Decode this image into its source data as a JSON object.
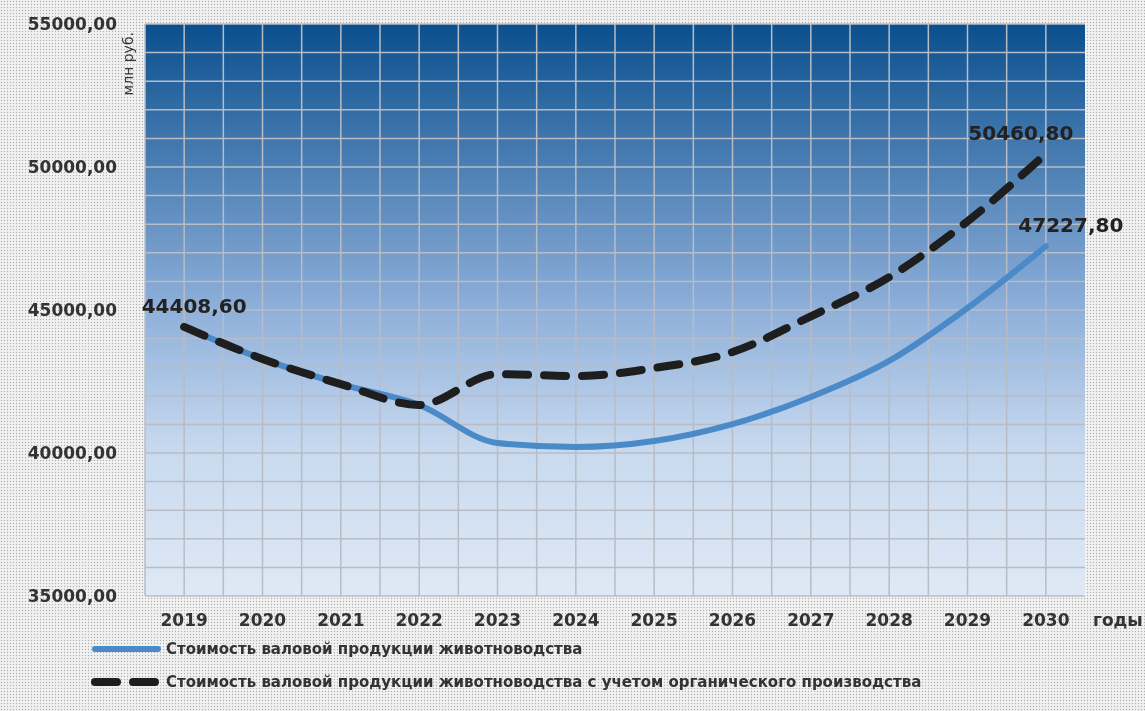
{
  "chart_data": {
    "type": "line",
    "ylabel": "млн руб.",
    "xlabel": "годы",
    "categories": [
      "2019",
      "2020",
      "2021",
      "2022",
      "2023",
      "2024",
      "2025",
      "2026",
      "2027",
      "2028",
      "2029",
      "2030"
    ],
    "series": [
      {
        "name": "Стоимость валовой продукции животноводства",
        "color": "#4a8ac8",
        "line_style": "solid",
        "values": [
          44408.6,
          43290,
          42410,
          41680,
          40350,
          40210,
          40420,
          41010,
          41960,
          43220,
          45070,
          47227.8
        ],
        "value_labels": [
          "44408,60",
          null,
          null,
          null,
          null,
          null,
          null,
          null,
          null,
          null,
          null,
          "47227,80"
        ]
      },
      {
        "name": "Стоимость валовой продукции животноводства с учетом органического производства",
        "color": "#1e1e1e",
        "line_style": "dashed",
        "values": [
          44408.6,
          43290,
          42410,
          41680,
          42760,
          42690,
          42970,
          43530,
          44780,
          46150,
          48100,
          50460.8
        ],
        "value_labels": [
          null,
          null,
          null,
          null,
          null,
          null,
          null,
          null,
          null,
          null,
          null,
          "50460,80"
        ]
      }
    ],
    "ylim": [
      35000,
      55000
    ],
    "yticks": [
      {
        "value": 35000,
        "label": "35000,00"
      },
      {
        "value": 36000,
        "label": null
      },
      {
        "value": 37000,
        "label": null
      },
      {
        "value": 38000,
        "label": null
      },
      {
        "value": 39000,
        "label": null
      },
      {
        "value": 40000,
        "label": "40000,00"
      },
      {
        "value": 41000,
        "label": null
      },
      {
        "value": 42000,
        "label": null
      },
      {
        "value": 43000,
        "label": null
      },
      {
        "value": 44000,
        "label": null
      },
      {
        "value": 45000,
        "label": "45000,00"
      },
      {
        "value": 46000,
        "label": null
      },
      {
        "value": 47000,
        "label": null
      },
      {
        "value": 48000,
        "label": null
      },
      {
        "value": 49000,
        "label": null
      },
      {
        "value": 50000,
        "label": "50000,00"
      },
      {
        "value": 51000,
        "label": null
      },
      {
        "value": 52000,
        "label": null
      },
      {
        "value": 53000,
        "label": null
      },
      {
        "value": 54000,
        "label": null
      },
      {
        "value": 55000,
        "label": "55000,00"
      }
    ],
    "grid": true,
    "legend": "bottom",
    "marker": "none"
  }
}
